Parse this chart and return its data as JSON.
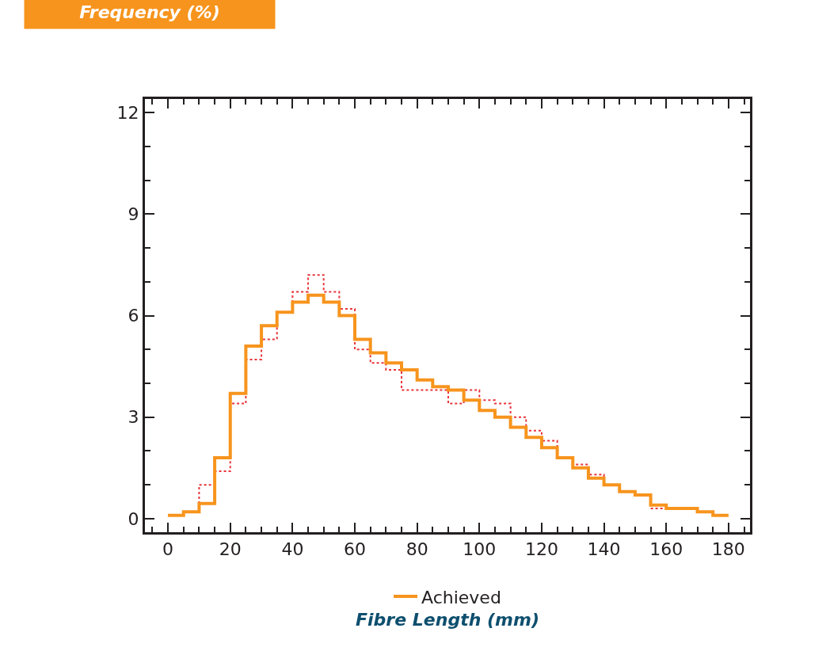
{
  "chart_data": {
    "type": "histogram",
    "ylabel": "Frequency (%)",
    "xlabel": "Fibre Length (mm)",
    "bins": [
      0,
      5,
      10,
      15,
      20,
      25,
      30,
      35,
      40,
      45,
      50,
      55,
      60,
      65,
      70,
      75,
      80,
      85,
      90,
      95,
      100,
      105,
      110,
      115,
      120,
      125,
      130,
      135,
      140,
      145,
      150,
      155,
      160,
      165,
      170,
      175,
      180
    ],
    "series": [
      {
        "color": "#e8343a",
        "line_style": "dotted",
        "values": [
          0.1,
          0.2,
          1.0,
          1.4,
          3.4,
          4.7,
          5.3,
          6.1,
          6.7,
          7.2,
          6.7,
          6.2,
          5.0,
          4.6,
          4.4,
          3.8,
          3.8,
          3.8,
          3.4,
          3.8,
          3.5,
          3.4,
          3.0,
          2.6,
          2.3,
          1.8,
          1.6,
          1.3,
          1.0,
          0.8,
          0.7,
          0.3,
          0.3,
          0.3,
          0.2,
          0.1
        ]
      },
      {
        "name": "Achieved",
        "color": "#f7941d",
        "line_style": "solid",
        "values": [
          0.1,
          0.2,
          0.45,
          1.8,
          3.7,
          5.1,
          5.7,
          6.1,
          6.4,
          6.6,
          6.4,
          6.0,
          5.3,
          4.9,
          4.6,
          4.4,
          4.1,
          3.9,
          3.8,
          3.5,
          3.2,
          3.0,
          2.7,
          2.4,
          2.1,
          1.8,
          1.5,
          1.2,
          1.0,
          0.8,
          0.7,
          0.4,
          0.3,
          0.3,
          0.2,
          0.1
        ]
      }
    ],
    "xlim": [
      -7.4,
      186.9
    ],
    "xticks": [
      0,
      20,
      40,
      60,
      80,
      100,
      120,
      140,
      160,
      180
    ],
    "ylim": [
      -0.4,
      12.4
    ],
    "yticks": [
      0,
      3,
      6,
      9,
      12
    ],
    "legend": "bottom",
    "marker": "none"
  }
}
